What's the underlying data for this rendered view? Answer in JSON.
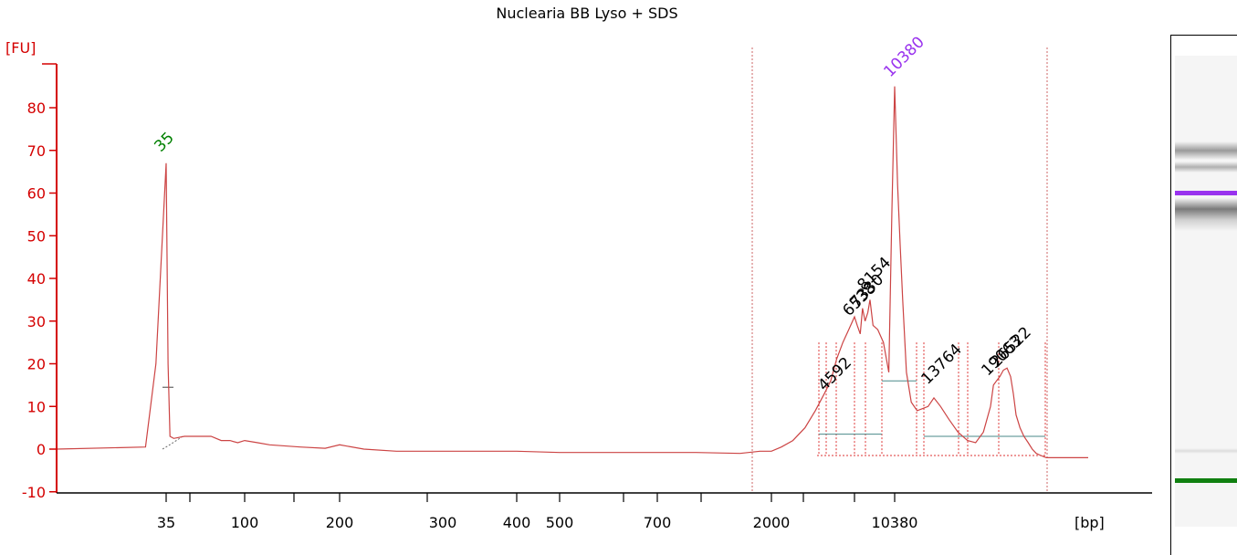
{
  "chart_data": {
    "type": "line",
    "title": "Nuclearia BB Lyso + SDS",
    "ylabel": "[FU]",
    "xlabel": "[bp]",
    "ylim": [
      -10,
      85
    ],
    "yticks": [
      -10,
      0,
      10,
      20,
      30,
      40,
      50,
      60,
      70,
      80
    ],
    "xtick_labels": [
      "35",
      "100",
      "200",
      "300",
      "400",
      "500",
      "700",
      "2000",
      "10380"
    ],
    "peak_labels": [
      "35",
      "10380",
      "4592",
      "6538",
      "7330",
      "8154",
      "13764",
      "19063",
      "26522"
    ],
    "colors": {
      "trace": "#cc4444",
      "axis": "#d40000",
      "lower_marker": "#008000",
      "upper_marker": "#9933ee",
      "peak_label": "#000000",
      "baseline": "#4a8a8a"
    },
    "series": [
      {
        "x": [
          30,
          34,
          34.5,
          35,
          35.5,
          36,
          37,
          40,
          50,
          60,
          70,
          80,
          90,
          100,
          110,
          120,
          150,
          180,
          200,
          220,
          250,
          300,
          400,
          500,
          700,
          1000,
          1500,
          1800,
          2000,
          2300,
          2700,
          3200,
          3700,
          4200,
          4592,
          5000,
          5500,
          6000,
          6538,
          6800,
          7100,
          7330,
          7600,
          7900,
          8154,
          8400,
          8800,
          9300,
          9800,
          10100,
          10380,
          10600,
          10800,
          11000,
          11300,
          11700,
          12200,
          12700,
          13200,
          13764,
          14300,
          15000,
          15800,
          16700,
          17500,
          18300,
          19063,
          19800,
          20600,
          21500,
          22500,
          23600,
          24700,
          25600,
          26522,
          27400,
          28300,
          29300,
          30300,
          31300,
          32500,
          34000,
          36000,
          38000,
          40000,
          44000,
          48000
        ],
        "y": [
          0,
          0.5,
          20,
          67,
          20,
          3,
          2.5,
          3,
          3,
          3,
          2,
          2,
          1.5,
          2,
          1.5,
          1,
          0.5,
          0.2,
          1,
          0,
          -0.5,
          -0.5,
          -0.5,
          -0.8,
          -0.8,
          -0.8,
          -1,
          -0.5,
          -0.5,
          0.5,
          2,
          5,
          9,
          13,
          16,
          21,
          25,
          28,
          31,
          29,
          27,
          33,
          30,
          32,
          35,
          29,
          28,
          25,
          18,
          55,
          85,
          62,
          48,
          35,
          18,
          11,
          9,
          9.5,
          10,
          12,
          10,
          7,
          4,
          2,
          1.5,
          4,
          10,
          15,
          16,
          17,
          18.5,
          19,
          17,
          13,
          8,
          5,
          3,
          1.5,
          0,
          -1,
          -1.5,
          -2,
          -2,
          -2,
          -2,
          -2,
          -2
        ]
      }
    ]
  }
}
